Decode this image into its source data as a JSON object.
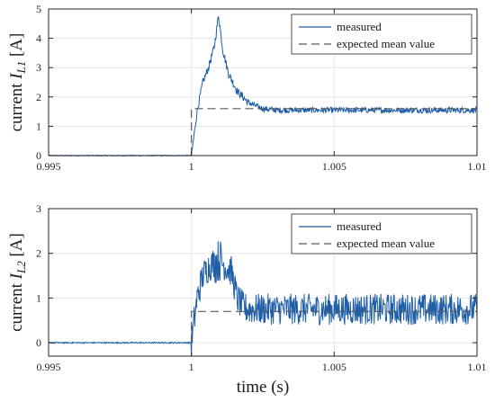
{
  "colors": {
    "measured": "#1f5fa8",
    "expected": "#595959",
    "grid": "#e6e6e6",
    "axis": "#262626"
  },
  "chart_data": [
    {
      "type": "line",
      "title": "",
      "xlabel": "",
      "ylabel": {
        "text": "current ",
        "var": "I",
        "sub": "L1",
        "unit": " [A]"
      },
      "xlim": [
        0.995,
        1.01
      ],
      "ylim": [
        0,
        5
      ],
      "xticks": [
        0.995,
        1,
        1.005,
        1.01
      ],
      "xtick_labels": [
        "0.995",
        "1",
        "1.005",
        "1.01"
      ],
      "yticks": [
        0,
        1,
        2,
        3,
        4,
        5
      ],
      "ytick_labels": [
        "0",
        "1",
        "2",
        "3",
        "4",
        "5"
      ],
      "grid": true,
      "legend": {
        "placement": "top-right",
        "entries": [
          "measured",
          "expected mean value"
        ]
      },
      "series": [
        {
          "name": "measured",
          "style": "solid",
          "x": [
            0.995,
            0.996,
            0.997,
            0.998,
            0.999,
            0.99995,
            1.0,
            1.0002,
            1.0004,
            1.0006,
            1.0008,
            1.00095,
            1.0011,
            1.0013,
            1.0016,
            1.002,
            1.0025,
            1.003,
            1.005,
            1.007,
            1.009,
            1.01
          ],
          "y": [
            0.0,
            0.0,
            0.0,
            0.0,
            0.0,
            0.0,
            0.0,
            1.5,
            2.5,
            3.0,
            3.7,
            4.8,
            3.6,
            2.8,
            2.2,
            1.8,
            1.6,
            1.55,
            1.55,
            1.55,
            1.55,
            1.55
          ],
          "noise": 0.1
        },
        {
          "name": "expected mean value",
          "style": "dashed",
          "x": [
            1.0,
            1.01
          ],
          "y": [
            1.6,
            1.6
          ]
        }
      ]
    },
    {
      "type": "line",
      "title": "",
      "xlabel": "time (s)",
      "ylabel": {
        "text": "current ",
        "var": "I",
        "sub": "L2",
        "unit": " [A]"
      },
      "xlim": [
        0.995,
        1.01
      ],
      "ylim": [
        -0.3,
        3
      ],
      "xticks": [
        0.995,
        1,
        1.005,
        1.01
      ],
      "xtick_labels": [
        "0.995",
        "1",
        "1.005",
        "1.01"
      ],
      "yticks": [
        0,
        1,
        2,
        3
      ],
      "ytick_labels": [
        "0",
        "1",
        "2",
        "3"
      ],
      "grid": true,
      "legend": {
        "placement": "top-right",
        "entries": [
          "measured",
          "expected mean value"
        ]
      },
      "series": [
        {
          "name": "measured",
          "style": "solid",
          "x": [
            0.995,
            0.997,
            0.999,
            0.99995,
            1.0,
            1.0002,
            1.0004,
            1.0006,
            1.0008,
            1.001,
            1.0012,
            1.0014,
            1.0016,
            1.0018,
            1.002,
            1.004,
            1.006,
            1.008,
            1.01
          ],
          "y": [
            0.0,
            0.0,
            0.0,
            0.0,
            0.0,
            1.0,
            1.5,
            1.7,
            1.8,
            1.85,
            1.7,
            1.6,
            1.0,
            0.8,
            0.75,
            0.75,
            0.75,
            0.75,
            0.75
          ],
          "noise": 0.35
        },
        {
          "name": "expected mean value",
          "style": "dashed",
          "x": [
            1.0,
            1.01
          ],
          "y": [
            0.7,
            0.7
          ]
        }
      ]
    }
  ]
}
